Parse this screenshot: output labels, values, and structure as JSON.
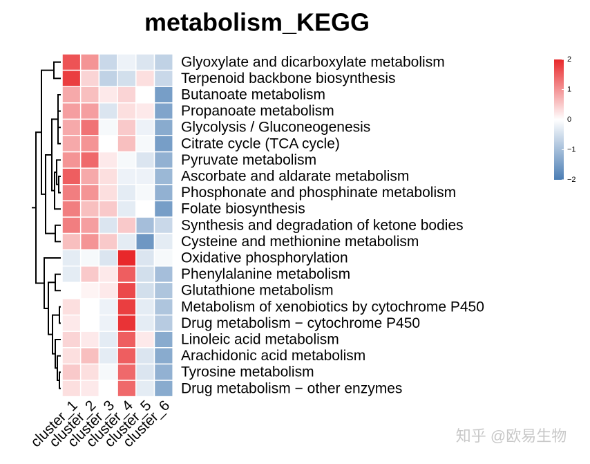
{
  "chart_data": {
    "type": "heatmap",
    "title": "metabolism_KEGG",
    "rows": [
      "Glyoxylate and dicarboxylate metabolism",
      "Terpenoid backbone biosynthesis",
      "Butanoate metabolism",
      "Propanoate metabolism",
      "Glycolysis / Gluconeogenesis",
      "Citrate cycle (TCA cycle)",
      "Pyruvate metabolism",
      "Ascorbate and aldarate metabolism",
      "Phosphonate and phosphinate metabolism",
      "Folate biosynthesis",
      "Synthesis and degradation of ketone bodies",
      "Cysteine and methionine metabolism",
      "Oxidative phosphorylation",
      "Phenylalanine metabolism",
      "Glutathione metabolism",
      "Metabolism of xenobiotics by cytochrome P450",
      "Drug metabolism − cytochrome P450",
      "Linoleic acid metabolism",
      "Arachidonic acid metabolism",
      "Tyrosine metabolism",
      "Drug metabolism − other enzymes"
    ],
    "columns": [
      "cluster_1",
      "cluster_2",
      "cluster_3",
      "cluster_4",
      "cluster_5",
      "cluster_6"
    ],
    "values": [
      [
        1.6,
        1.0,
        -0.6,
        -0.2,
        -0.4,
        -0.7
      ],
      [
        1.8,
        0.4,
        -0.7,
        -0.5,
        0.3,
        -0.6
      ],
      [
        0.8,
        0.6,
        0.2,
        0.4,
        0.0,
        -1.5
      ],
      [
        0.9,
        0.9,
        -0.4,
        0.3,
        0.2,
        -1.4
      ],
      [
        0.8,
        1.3,
        -0.1,
        0.5,
        -0.2,
        -1.3
      ],
      [
        0.8,
        1.0,
        0.0,
        0.6,
        -0.1,
        -1.5
      ],
      [
        1.0,
        1.4,
        0.2,
        -0.1,
        -0.4,
        -1.2
      ],
      [
        1.5,
        0.8,
        0.3,
        -0.2,
        -0.2,
        -1.1
      ],
      [
        1.2,
        1.0,
        0.3,
        -0.3,
        -0.1,
        -1.2
      ],
      [
        1.2,
        0.6,
        0.5,
        -0.3,
        0.0,
        -1.5
      ],
      [
        1.2,
        0.9,
        -0.4,
        0.5,
        -1.0,
        -0.6
      ],
      [
        0.6,
        1.0,
        0.5,
        -0.3,
        -1.6,
        -0.3
      ],
      [
        -0.3,
        -0.1,
        -0.4,
        2.0,
        -0.4,
        -0.1
      ],
      [
        -0.3,
        0.5,
        0.2,
        1.5,
        -0.5,
        -1.0
      ],
      [
        0.0,
        0.1,
        0.2,
        1.7,
        -0.5,
        -0.9
      ],
      [
        0.3,
        0.0,
        -0.2,
        1.8,
        -0.3,
        -0.9
      ],
      [
        0.2,
        0.0,
        -0.2,
        1.9,
        -0.3,
        -0.8
      ],
      [
        0.4,
        0.2,
        -0.3,
        1.5,
        0.2,
        -1.3
      ],
      [
        0.3,
        0.6,
        -0.3,
        1.5,
        -0.4,
        -1.3
      ],
      [
        0.5,
        0.3,
        -0.1,
        1.4,
        -0.4,
        -1.2
      ],
      [
        0.3,
        0.2,
        0.0,
        1.4,
        -0.3,
        -1.3
      ]
    ],
    "zlim": [
      -2,
      2
    ],
    "zticks": [
      2,
      1,
      0,
      {
        "value": -1,
        "label": "−1"
      },
      {
        "value": -2,
        "label": "−2"
      }
    ],
    "colors": [
      "#4a7db4",
      "#ffffff",
      "#e8282b"
    ],
    "watermark": "知乎 @欧易生物"
  }
}
